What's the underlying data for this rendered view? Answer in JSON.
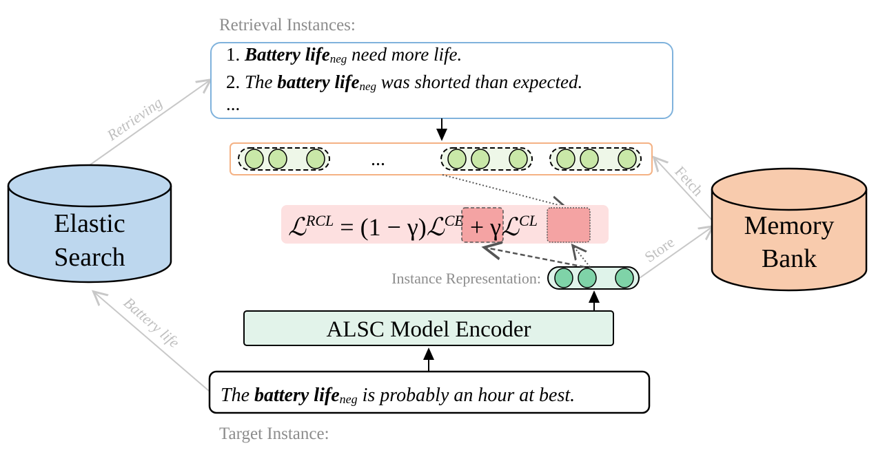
{
  "retrieval": {
    "title": "Retrieval Instances:",
    "items": [
      {
        "num": "1.",
        "bold": "Battery life",
        "sub": "neg",
        "rest": " need more life."
      },
      {
        "num": "2.",
        "pre": "The ",
        "bold": "battery life",
        "sub": "neg",
        "rest": " was shorted than expected."
      }
    ],
    "ellipsis": "..."
  },
  "memory_strip": {
    "ellipsis": "..."
  },
  "formula": {
    "lhs": "ℒ",
    "lhs_sup": "RCL",
    "mid": " = (1 − γ)",
    "ce": "ℒ",
    "ce_sup": "CE",
    "plus": " + γ",
    "cl": "ℒ",
    "cl_sup": "CL"
  },
  "instance_repr_label": "Instance Representation:",
  "encoder_label": "ALSC Model Encoder",
  "target": {
    "title": "Target Instance:",
    "pre": "The ",
    "bold": "battery life",
    "sub": "neg",
    "rest": " is probably an hour at best."
  },
  "elastic": {
    "line1": "Elastic",
    "line2": "Search"
  },
  "memory_bank": {
    "line1": "Memory",
    "line2": "Bank"
  },
  "edges": {
    "retrieving": "Retrieving",
    "battery_life": "Battery life",
    "fetch": "Fetch",
    "store": "Store"
  },
  "colors": {
    "elastic": "#bdd7ee",
    "memory_bank": "#f8cbad",
    "retrieval_border": "#7fb2dc",
    "strip_border": "#f4b183",
    "encoder": "#e2f3ea",
    "formula_bg": "#fde0e0",
    "highlight": "#f4a3a3"
  }
}
